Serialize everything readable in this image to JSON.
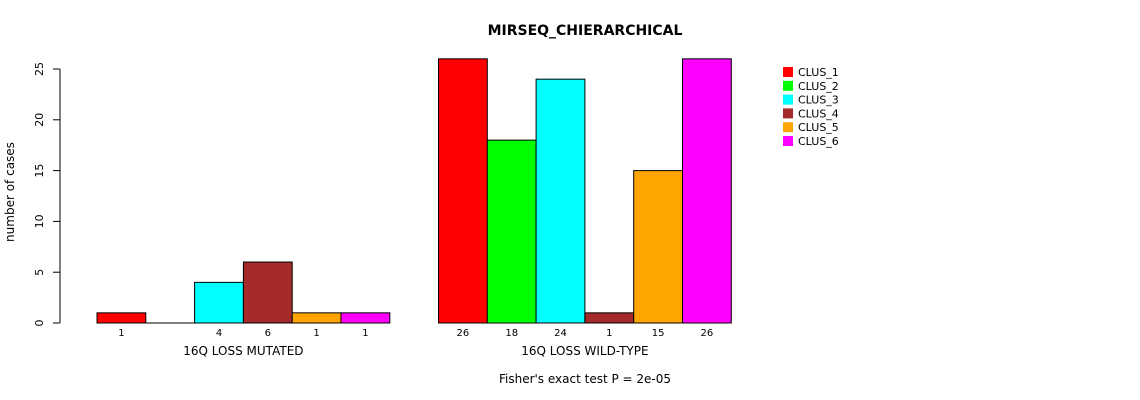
{
  "chart_data": {
    "type": "bar",
    "title": "MIRSEQ_CHIERARCHICAL",
    "ylabel": "number of cases",
    "xlabel": "",
    "footnote": "Fisher's exact test P = 2e-05",
    "ylim": [
      0,
      26
    ],
    "yticks": [
      0,
      5,
      10,
      15,
      20,
      25
    ],
    "groups": [
      "16Q LOSS MUTATED",
      "16Q LOSS WILD-TYPE"
    ],
    "series": [
      {
        "name": "CLUS_1",
        "color": "#ff0000",
        "values": [
          1,
          26
        ]
      },
      {
        "name": "CLUS_2",
        "color": "#00ff00",
        "values": [
          0,
          18
        ]
      },
      {
        "name": "CLUS_3",
        "color": "#00ffff",
        "values": [
          4,
          24
        ]
      },
      {
        "name": "CLUS_4",
        "color": "#a52a2a",
        "values": [
          6,
          1
        ]
      },
      {
        "name": "CLUS_5",
        "color": "#ffa500",
        "values": [
          1,
          15
        ]
      },
      {
        "name": "CLUS_6",
        "color": "#ff00ff",
        "values": [
          1,
          26
        ]
      }
    ],
    "legend_position": "top-right",
    "grid": false
  }
}
